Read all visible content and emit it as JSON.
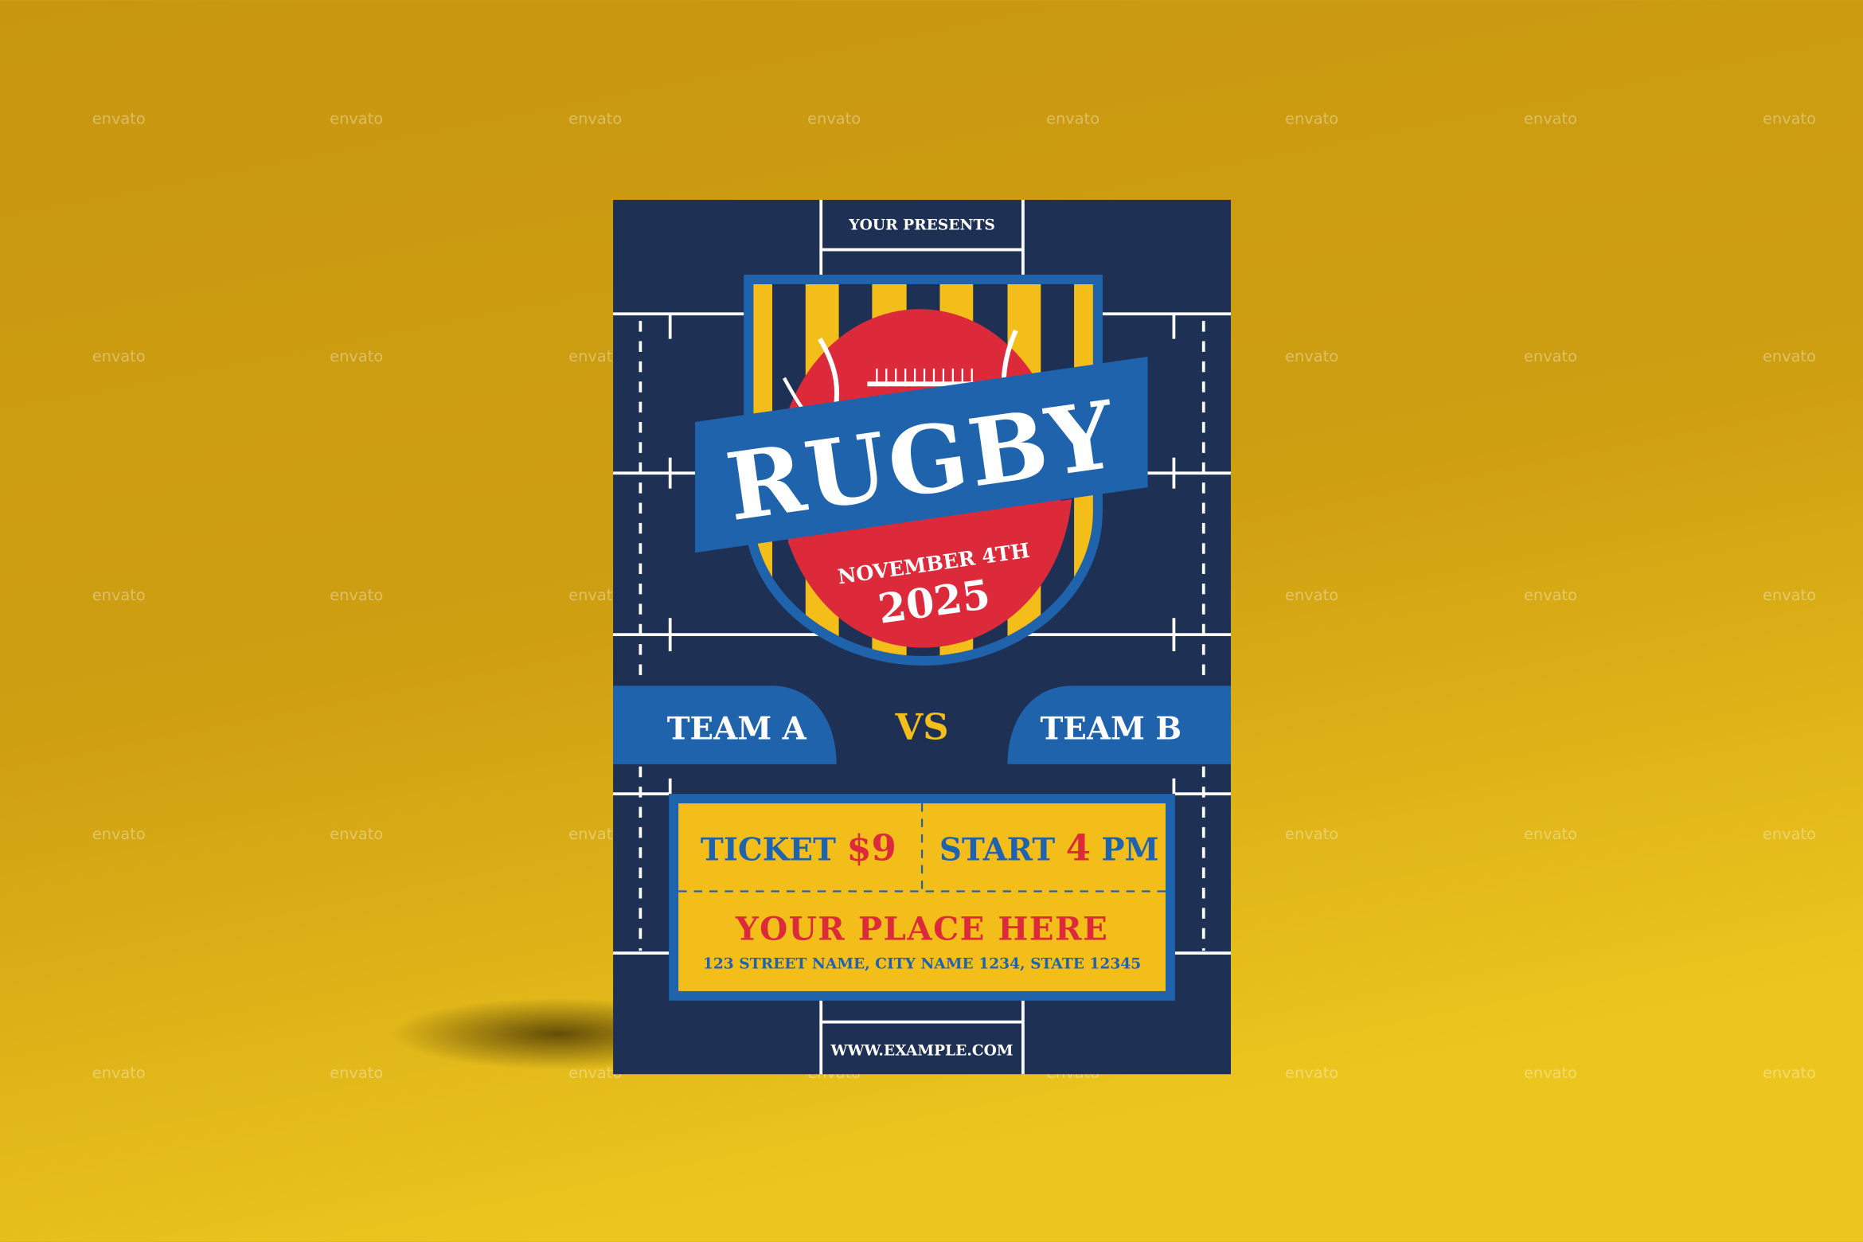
{
  "watermark": "envato",
  "flyer": {
    "presenter": "YOUR PRESENTS",
    "title": "RUGBY",
    "date": "NOVEMBER 4TH",
    "year": "2025",
    "team_a": "TEAM A",
    "vs": "VS",
    "team_b": "TEAM B",
    "ticket_label": "TICKET",
    "ticket_price": "$9",
    "start_label": "START",
    "start_time": "4",
    "start_suffix": "PM",
    "venue": "YOUR PLACE HERE",
    "address": "123 STREET NAME, CITY NAME 1234, STATE 12345",
    "website": "WWW.EXAMPLE.COM"
  },
  "colors": {
    "background": "#d4a514",
    "navy": "#1e3154",
    "blue": "#1f63ad",
    "yellow": "#f3be1a",
    "red": "#dc2a3a",
    "white": "#ffffff"
  }
}
